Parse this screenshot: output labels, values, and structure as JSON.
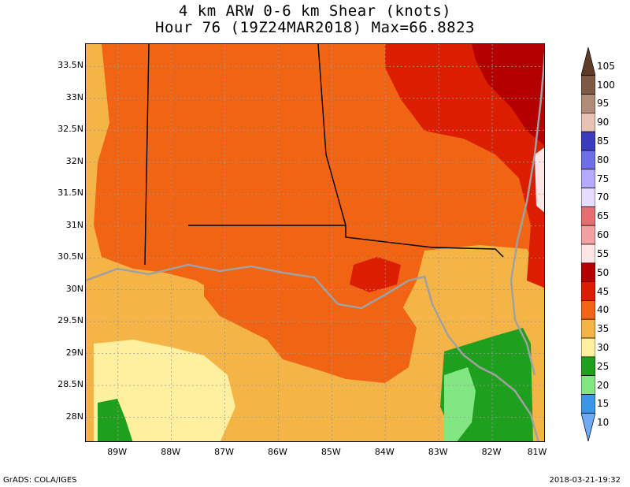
{
  "title": {
    "line1": "4 km ARW 0-6 km Shear (knots)",
    "line2": "Hour 76 (19Z24MAR2018) Max=66.8823"
  },
  "axes": {
    "lat_labels": [
      "33.5N",
      "33N",
      "32.5N",
      "32N",
      "31.5N",
      "31N",
      "30.5N",
      "30N",
      "29.5N",
      "29N",
      "28.5N",
      "28N"
    ],
    "lat_values": [
      33.5,
      33,
      32.5,
      32,
      31.5,
      31,
      30.5,
      30,
      29.5,
      29,
      28.5,
      28
    ],
    "lon_labels": [
      "89W",
      "88W",
      "87W",
      "86W",
      "85W",
      "84W",
      "83W",
      "82W",
      "81W"
    ],
    "lon_values": [
      -89,
      -88,
      -87,
      -86,
      -85,
      -84,
      -83,
      -82,
      -81
    ],
    "lat_range": [
      27.6,
      33.85
    ],
    "lon_range": [
      -89.6,
      -81.0
    ]
  },
  "colorbar": {
    "levels": [
      {
        "label": "105",
        "color": "#603c28"
      },
      {
        "label": "100",
        "color": "#7d5a46"
      },
      {
        "label": "95",
        "color": "#b08c78"
      },
      {
        "label": "90",
        "color": "#e6c3b4"
      },
      {
        "label": "85",
        "color": "#3c3cbe"
      },
      {
        "label": "80",
        "color": "#6e6ee6"
      },
      {
        "label": "75",
        "color": "#b4aaff"
      },
      {
        "label": "70",
        "color": "#e6dcff"
      },
      {
        "label": "65",
        "color": "#e66e6e"
      },
      {
        "label": "60",
        "color": "#f5a0a0"
      },
      {
        "label": "55",
        "color": "#ffe6e6"
      },
      {
        "label": "50",
        "color": "#b40000"
      },
      {
        "label": "45",
        "color": "#dc1e00"
      },
      {
        "label": "40",
        "color": "#f06414"
      },
      {
        "label": "35",
        "color": "#f5b446"
      },
      {
        "label": "30",
        "color": "#fff0a0"
      },
      {
        "label": "25",
        "color": "#1ea01e"
      },
      {
        "label": "20",
        "color": "#82e682"
      },
      {
        "label": "15",
        "color": "#3c96e6"
      },
      {
        "label": "10",
        "color": "#6eaaf5"
      }
    ]
  },
  "footer": {
    "left": "GrADS: COLA/IGES",
    "right": "2018-03-21-19:32"
  }
}
